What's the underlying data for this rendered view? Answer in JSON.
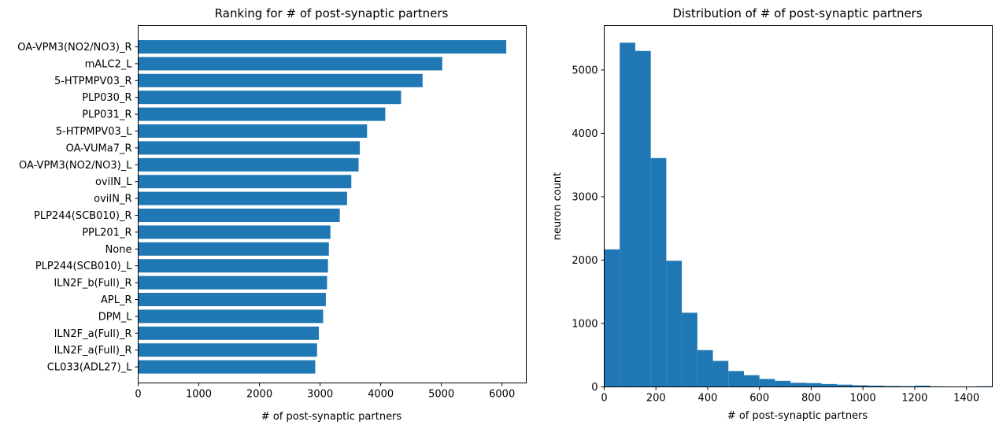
{
  "colors": {
    "bar": "#1f77b4",
    "axis": "#000000"
  },
  "chart_data": [
    {
      "type": "bar",
      "orientation": "horizontal",
      "title": "Ranking for # of post-synaptic partners",
      "xlabel": "# of post-synaptic partners",
      "ylabel": "",
      "xlim": [
        0,
        6400
      ],
      "xticks": [
        0,
        1000,
        2000,
        3000,
        4000,
        5000,
        6000
      ],
      "categories": [
        "OA-VPM3(NO2/NO3)_R",
        "mALC2_L",
        "5-HTPMPV03_R",
        "PLP030_R",
        "PLP031_R",
        "5-HTPMPV03_L",
        "OA-VUMa7_R",
        "OA-VPM3(NO2/NO3)_L",
        "oviIN_L",
        "oviIN_R",
        "PLP244(SCB010)_R",
        "PPL201_R",
        "None",
        "PLP244(SCB010)_L",
        "lLN2F_b(Full)_R",
        "APL_R",
        "DPM_L",
        "lLN2F_a(Full)_R",
        "lLN2F_a(Full)_R",
        "CL033(ADL27)_L"
      ],
      "values": [
        6070,
        5015,
        4690,
        4335,
        4075,
        3775,
        3655,
        3635,
        3515,
        3445,
        3325,
        3170,
        3145,
        3130,
        3115,
        3095,
        3050,
        2980,
        2950,
        2920
      ]
    },
    {
      "type": "bar",
      "subtype": "histogram",
      "title": "Distribution of # of post-synaptic partners",
      "xlabel": "# of post-synaptic partners",
      "ylabel": "neuron count",
      "xlim": [
        0,
        1500
      ],
      "ylim": [
        0,
        5700
      ],
      "xticks": [
        0,
        200,
        400,
        600,
        800,
        1000,
        1200,
        1400
      ],
      "yticks": [
        0,
        1000,
        2000,
        3000,
        4000,
        5000
      ],
      "bin_width": 60,
      "bin_starts": [
        0,
        60,
        120,
        180,
        240,
        300,
        360,
        420,
        480,
        540,
        600,
        660,
        720,
        780,
        840,
        900,
        960,
        1020,
        1080,
        1140,
        1200,
        1260,
        1320,
        1380,
        1440
      ],
      "values": [
        2170,
        5430,
        5300,
        3610,
        1990,
        1170,
        580,
        410,
        250,
        185,
        125,
        95,
        65,
        60,
        45,
        35,
        25,
        20,
        15,
        12,
        20,
        8,
        6,
        5,
        10
      ]
    }
  ]
}
